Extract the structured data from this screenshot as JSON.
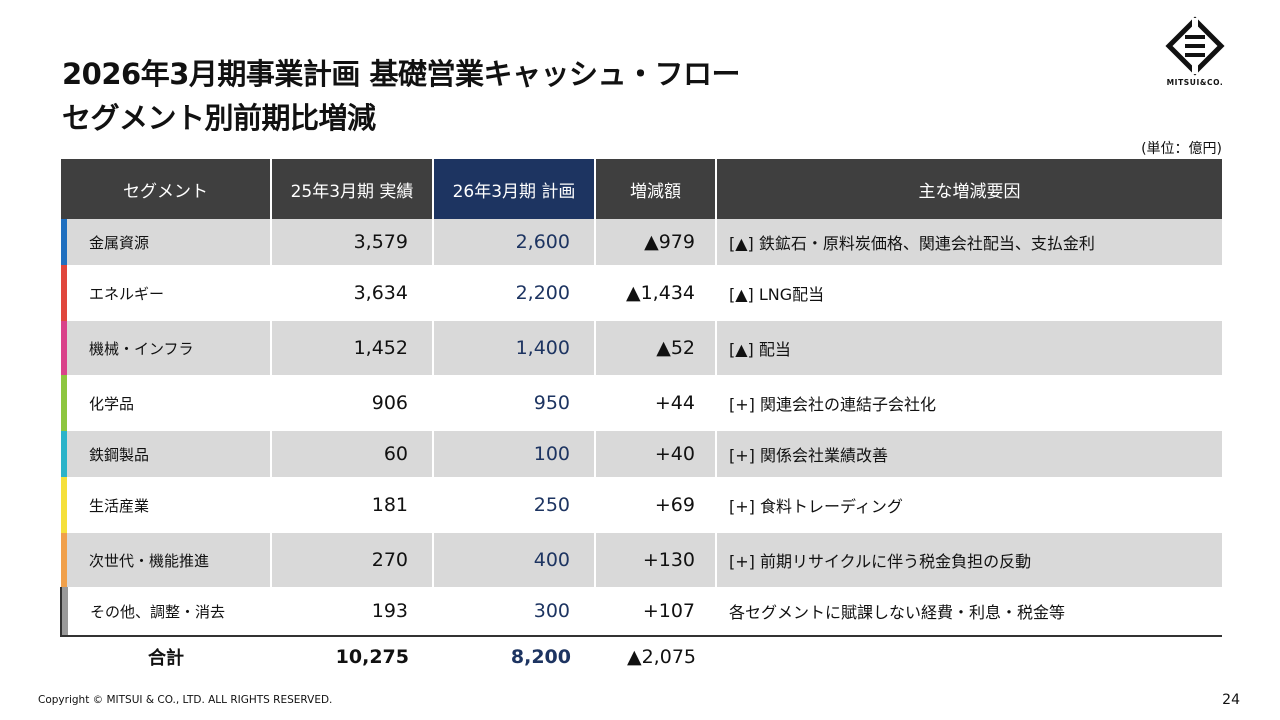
{
  "title_line1": "2026年3月期事業計画 基礎営業キャッシュ・フロー",
  "title_line2": "セグメント別前期比増減",
  "logo_text": "MITSUI&CO.",
  "unit": "(単位：億円)",
  "columns": {
    "segment": "セグメント",
    "actual": "25年3月期 実績",
    "plan": "26年3月期 計画",
    "change": "増減額",
    "factors": "主な増減要因"
  },
  "rows": [
    {
      "segment": "金属資源",
      "actual": "3,579",
      "plan": "2,600",
      "change": "▲979",
      "factor": "[▲] 鉄鉱石・原料炭価格、関連会社配当、支払金利",
      "color": "#1f6fbf"
    },
    {
      "segment": "エネルギー",
      "actual": "3,634",
      "plan": "2,200",
      "change": "▲1,434",
      "factor": "[▲] LNG配当",
      "color": "#e0463c"
    },
    {
      "segment": "機械・インフラ",
      "actual": "1,452",
      "plan": "1,400",
      "change": "▲52",
      "factor": "[▲] 配当",
      "color": "#d9428a"
    },
    {
      "segment": "化学品",
      "actual": "906",
      "plan": "950",
      "change": "+44",
      "factor": "[+] 関連会社の連結子会社化",
      "color": "#8dc63f"
    },
    {
      "segment": "鉄鋼製品",
      "actual": "60",
      "plan": "100",
      "change": "+40",
      "factor": "[+] 関係会社業績改善",
      "color": "#2bb3c9"
    },
    {
      "segment": "生活産業",
      "actual": "181",
      "plan": "250",
      "change": "+69",
      "factor": "[+] 食料トレーディング",
      "color": "#f5e03b"
    },
    {
      "segment": "次世代・機能推進",
      "actual": "270",
      "plan": "400",
      "change": "+130",
      "factor": "[+] 前期リサイクルに伴う税金負担の反動",
      "color": "#f0a04b"
    },
    {
      "segment": "その他、調整・消去",
      "actual": "193",
      "plan": "300",
      "change": "+107",
      "factor": "各セグメントに賦課しない経費・利息・税金等",
      "color": "#9a9a9a"
    }
  ],
  "total": {
    "label": "合計",
    "actual": "10,275",
    "plan": "8,200",
    "change": "▲2,075"
  },
  "copyright": "Copyright © MITSUI & CO., LTD. ALL RIGHTS RESERVED.",
  "page_number": "24"
}
